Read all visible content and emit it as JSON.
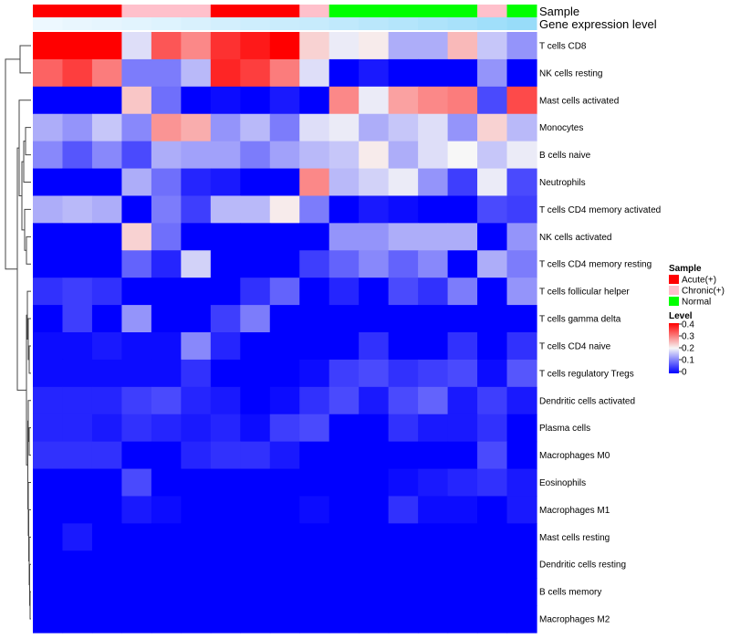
{
  "chart_data": {
    "type": "heatmap",
    "title": "",
    "annotation_labels": {
      "sample": "Sample",
      "gene": "Gene expression level"
    },
    "legend_sample": {
      "title": "Sample",
      "entries": [
        {
          "label": "Acute(+)",
          "color": "#ff0000"
        },
        {
          "label": "Chronic(+)",
          "color": "#ffc0cb"
        },
        {
          "label": "Normal",
          "color": "#00ff00"
        }
      ]
    },
    "legend_level": {
      "title": "Level",
      "ticks": [
        "0.4",
        "0.3",
        "0.2",
        "0.1",
        "0"
      ],
      "colors": {
        "low": "#0000ff",
        "mid": "#f7f7f7",
        "high": "#ff0000"
      },
      "range": [
        0,
        0.4
      ]
    },
    "samples": [
      "Acute(+)",
      "Acute(+)",
      "Acute(+)",
      "Chronic(+)",
      "Chronic(+)",
      "Chronic(+)",
      "Acute(+)",
      "Acute(+)",
      "Acute(+)",
      "Chronic(+)",
      "Normal",
      "Normal",
      "Normal",
      "Normal",
      "Normal",
      "Chronic(+)",
      "Normal"
    ],
    "gene_level": [
      0.05,
      0.08,
      0.1,
      0.12,
      0.15,
      0.18,
      0.22,
      0.25,
      0.28,
      0.3,
      0.34,
      0.38,
      0.42,
      0.46,
      0.5,
      0.55,
      0.6
    ],
    "rows": [
      "T cells CD8",
      "NK cells resting",
      "Mast cells activated",
      "Monocytes",
      "B cells naive",
      "Neutrophils",
      "T cells CD4 memory activated",
      "NK cells activated",
      "T cells CD4 memory resting",
      "T cells follicular helper",
      "T cells gamma delta",
      "T cells CD4 naive",
      "T cells regulatory  Tregs",
      "Dendritic cells activated",
      "Plasma cells",
      "Macrophages M0",
      "Eosinophils",
      "Macrophages M1",
      "Mast cells resting",
      "Dendritic cells resting",
      "B cells memory",
      "Macrophages M2"
    ],
    "values": [
      [
        0.4,
        0.4,
        0.4,
        0.18,
        0.33,
        0.29,
        0.36,
        0.38,
        0.4,
        0.23,
        0.19,
        0.21,
        0.14,
        0.14,
        0.25,
        0.16,
        0.12
      ],
      [
        0.32,
        0.35,
        0.3,
        0.1,
        0.1,
        0.15,
        0.37,
        0.35,
        0.3,
        0.18,
        0.0,
        0.02,
        0.0,
        0.0,
        0.0,
        0.12,
        0.0
      ],
      [
        0.0,
        0.0,
        0.0,
        0.24,
        0.09,
        0.0,
        0.01,
        0.0,
        0.02,
        0.0,
        0.29,
        0.19,
        0.27,
        0.29,
        0.3,
        0.06,
        0.34
      ],
      [
        0.14,
        0.12,
        0.16,
        0.11,
        0.28,
        0.26,
        0.12,
        0.15,
        0.1,
        0.18,
        0.19,
        0.14,
        0.16,
        0.18,
        0.12,
        0.23,
        0.15
      ],
      [
        0.11,
        0.07,
        0.11,
        0.06,
        0.14,
        0.13,
        0.13,
        0.1,
        0.13,
        0.15,
        0.16,
        0.21,
        0.14,
        0.18,
        0.2,
        0.16,
        0.19
      ],
      [
        0.0,
        0.0,
        0.0,
        0.14,
        0.09,
        0.03,
        0.02,
        0.0,
        0.0,
        0.29,
        0.15,
        0.17,
        0.19,
        0.12,
        0.05,
        0.19,
        0.06
      ],
      [
        0.14,
        0.15,
        0.14,
        0.0,
        0.1,
        0.05,
        0.15,
        0.15,
        0.21,
        0.1,
        0.0,
        0.02,
        0.01,
        0.0,
        0.0,
        0.06,
        0.05
      ],
      [
        0.0,
        0.0,
        0.0,
        0.23,
        0.09,
        0.0,
        0.0,
        0.0,
        0.0,
        0.0,
        0.12,
        0.12,
        0.14,
        0.14,
        0.14,
        0.0,
        0.12
      ],
      [
        0.0,
        0.0,
        0.0,
        0.08,
        0.03,
        0.17,
        0.0,
        0.0,
        0.0,
        0.05,
        0.08,
        0.11,
        0.08,
        0.11,
        0.0,
        0.14,
        0.1
      ],
      [
        0.04,
        0.05,
        0.04,
        0.0,
        0.0,
        0.0,
        0.0,
        0.04,
        0.08,
        0.0,
        0.03,
        0.0,
        0.06,
        0.04,
        0.1,
        0.0,
        0.12
      ],
      [
        0.0,
        0.05,
        0.0,
        0.12,
        0.0,
        0.0,
        0.05,
        0.1,
        0.0,
        0.0,
        0.0,
        0.0,
        0.0,
        0.0,
        0.0,
        0.0,
        0.0
      ],
      [
        0.01,
        0.01,
        0.02,
        0.01,
        0.01,
        0.11,
        0.03,
        0.0,
        0.0,
        0.0,
        0.0,
        0.04,
        0.0,
        0.0,
        0.04,
        0.0,
        0.04
      ],
      [
        0.01,
        0.01,
        0.01,
        0.01,
        0.01,
        0.04,
        0.0,
        0.0,
        0.0,
        0.01,
        0.05,
        0.06,
        0.04,
        0.05,
        0.06,
        0.01,
        0.07
      ],
      [
        0.03,
        0.03,
        0.03,
        0.05,
        0.06,
        0.03,
        0.02,
        0.0,
        0.01,
        0.04,
        0.06,
        0.02,
        0.06,
        0.08,
        0.02,
        0.05,
        0.02
      ],
      [
        0.03,
        0.03,
        0.02,
        0.04,
        0.03,
        0.02,
        0.03,
        0.01,
        0.05,
        0.06,
        0.0,
        0.0,
        0.04,
        0.02,
        0.02,
        0.04,
        0.0
      ],
      [
        0.04,
        0.04,
        0.04,
        0.0,
        0.0,
        0.03,
        0.04,
        0.04,
        0.02,
        0.0,
        0.0,
        0.0,
        0.0,
        0.0,
        0.0,
        0.06,
        0.0
      ],
      [
        0.0,
        0.0,
        0.0,
        0.06,
        0.0,
        0.0,
        0.0,
        0.0,
        0.0,
        0.0,
        0.0,
        0.0,
        0.01,
        0.02,
        0.03,
        0.04,
        0.02
      ],
      [
        0.0,
        0.0,
        0.0,
        0.02,
        0.01,
        0.0,
        0.0,
        0.0,
        0.0,
        0.01,
        0.0,
        0.0,
        0.04,
        0.01,
        0.01,
        0.0,
        0.02
      ],
      [
        0.0,
        0.02,
        0.0,
        0.0,
        0.0,
        0.0,
        0.0,
        0.0,
        0.0,
        0.0,
        0.0,
        0.0,
        0.0,
        0.0,
        0.0,
        0.0,
        0.0
      ],
      [
        0.0,
        0.0,
        0.0,
        0.0,
        0.0,
        0.0,
        0.0,
        0.0,
        0.0,
        0.0,
        0.0,
        0.0,
        0.0,
        0.0,
        0.0,
        0.0,
        0.0
      ],
      [
        0.0,
        0.0,
        0.0,
        0.0,
        0.0,
        0.0,
        0.0,
        0.0,
        0.0,
        0.0,
        0.0,
        0.0,
        0.0,
        0.0,
        0.0,
        0.0,
        0.0
      ],
      [
        0.0,
        0.0,
        0.0,
        0.0,
        0.0,
        0.0,
        0.0,
        0.0,
        0.0,
        0.0,
        0.0,
        0.0,
        0.0,
        0.0,
        0.0,
        0.0,
        0.0
      ]
    ]
  }
}
